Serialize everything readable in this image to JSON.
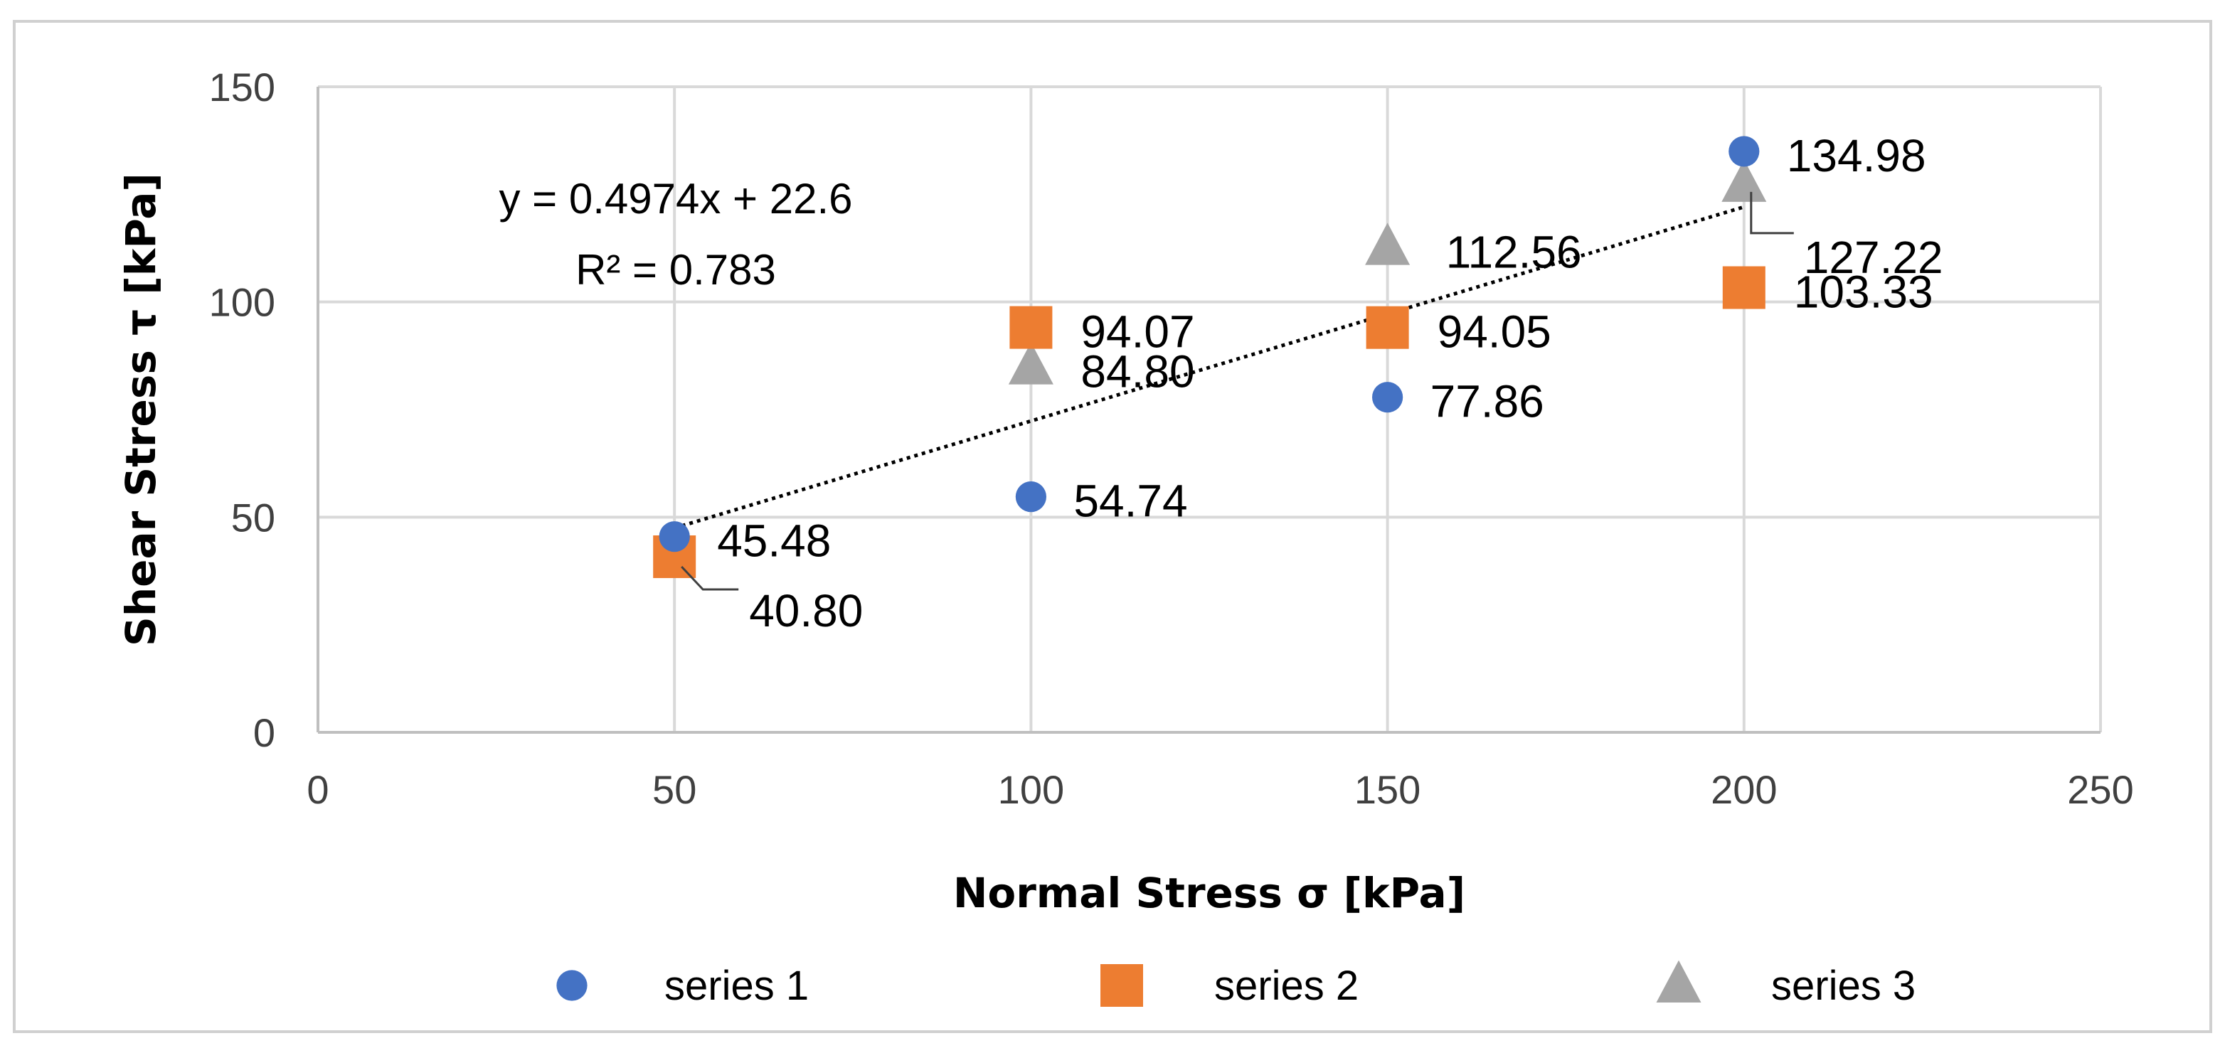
{
  "chart_data": {
    "type": "scatter",
    "title": "",
    "xlabel": "Normal Stress σ [kPa]",
    "ylabel": "Shear Stress τ [kPa]",
    "xlim": [
      0,
      250
    ],
    "ylim": [
      0,
      150
    ],
    "x_ticks": [
      "0",
      "50",
      "100",
      "150",
      "200",
      "250"
    ],
    "y_ticks": [
      "0",
      "50",
      "100",
      "150"
    ],
    "grid": true,
    "legend_position": "bottom",
    "series": [
      {
        "name": "series 1",
        "marker": "circle",
        "color": "#4472c4",
        "x": [
          50,
          100,
          150,
          200
        ],
        "y": [
          45.48,
          54.74,
          77.86,
          134.98
        ],
        "labels": [
          "45.48",
          "54.74",
          "77.86",
          "134.98"
        ]
      },
      {
        "name": "series 2",
        "marker": "square",
        "color": "#ed7d31",
        "x": [
          50,
          100,
          150,
          200
        ],
        "y": [
          40.8,
          94.07,
          94.05,
          103.33
        ],
        "labels": [
          "40.80",
          "94.07",
          "94.05",
          "103.33"
        ]
      },
      {
        "name": "series 3",
        "marker": "triangle",
        "color": "#a5a5a5",
        "x": [
          100,
          150,
          200
        ],
        "y": [
          84.8,
          112.56,
          127.22
        ],
        "labels": [
          "84.80",
          "112.56",
          "127.22"
        ]
      }
    ],
    "trendline": {
      "type": "linear",
      "style": "dotted",
      "color": "#000000",
      "slope": 0.4974,
      "intercept": 22.6,
      "x_range": [
        50,
        200
      ],
      "equation": "y = 0.4974x + 22.6",
      "r_squared": "R² = 0.783"
    }
  }
}
